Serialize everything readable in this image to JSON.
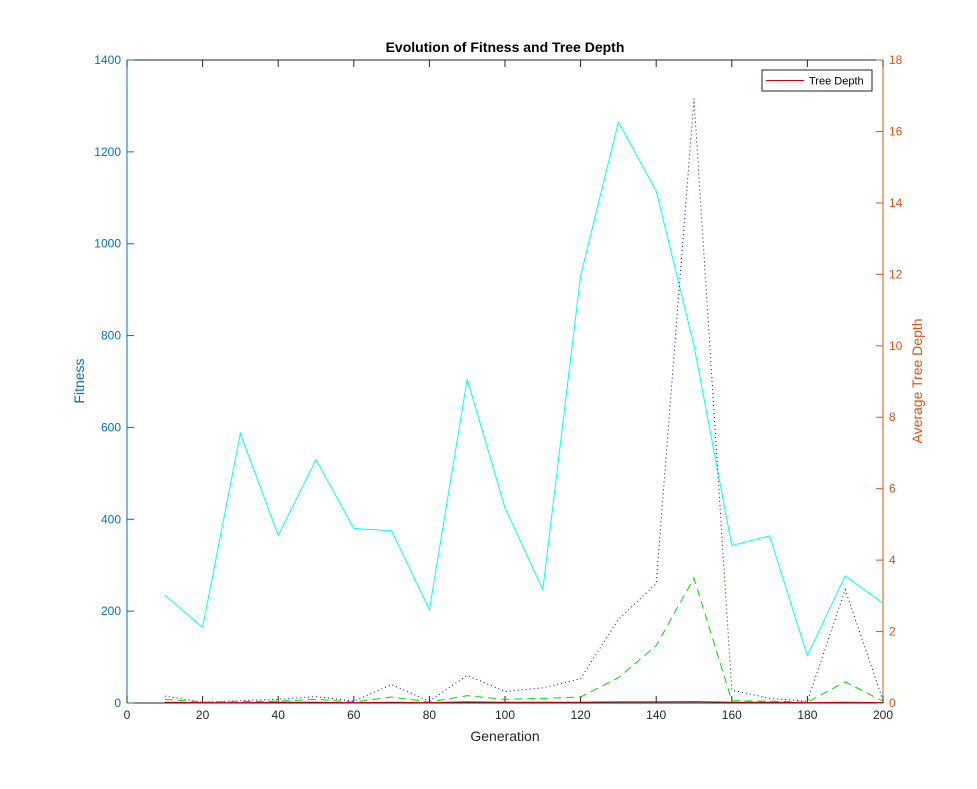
{
  "chart_data": {
    "type": "line",
    "title": "Evolution of Fitness and Tree Depth",
    "xlabel": "Generation",
    "ylabel_left": "Fitness",
    "ylabel_right": "Average Tree Depth",
    "xlim": [
      0,
      200
    ],
    "ylim_left": [
      0,
      1400
    ],
    "ylim_right": [
      0,
      18
    ],
    "xticks": [
      0,
      20,
      40,
      60,
      80,
      100,
      120,
      140,
      160,
      180,
      200
    ],
    "yticks_left": [
      0,
      200,
      400,
      600,
      800,
      1000,
      1200,
      1400
    ],
    "yticks_right": [
      0,
      2,
      4,
      6,
      8,
      10,
      12,
      14,
      16,
      18
    ],
    "grid": false,
    "legend_position": "top-right",
    "x": [
      10,
      20,
      30,
      40,
      50,
      60,
      70,
      80,
      90,
      100,
      110,
      120,
      130,
      140,
      150,
      160,
      170,
      180,
      190,
      200
    ],
    "series": [
      {
        "axis": "left",
        "color": "#00FFFF",
        "style": "solid",
        "values": [
          235,
          165,
          587,
          365,
          530,
          380,
          375,
          203,
          705,
          425,
          247,
          930,
          1265,
          1115,
          778,
          343,
          364,
          103,
          277,
          217
        ]
      },
      {
        "axis": "left",
        "color": "#0000CC",
        "style": "dotted",
        "values": [
          15,
          2,
          5,
          8,
          14,
          4,
          40,
          4,
          60,
          25,
          33,
          53,
          182,
          260,
          1316,
          28,
          10,
          4,
          247,
          6
        ]
      },
      {
        "axis": "left",
        "color": "#00DD00",
        "style": "dashed",
        "values": [
          8,
          2,
          3,
          4,
          8,
          2,
          13,
          2,
          16,
          8,
          10,
          13,
          55,
          125,
          272,
          5,
          4,
          2,
          46,
          4
        ]
      },
      {
        "name": "Tree Depth",
        "axis": "right",
        "color": "#CC0000",
        "style": "solid",
        "values": [
          0.02,
          0.01,
          0.01,
          0.02,
          0.02,
          0.01,
          0.02,
          0.01,
          0.03,
          0.02,
          0.02,
          0.02,
          0.03,
          0.03,
          0.04,
          0.02,
          0.02,
          0.01,
          0.02,
          0.01
        ]
      }
    ],
    "colors": {
      "left_axis": "#0072BD",
      "right_axis": "#D95319",
      "bottom_axis": "#262626"
    }
  }
}
